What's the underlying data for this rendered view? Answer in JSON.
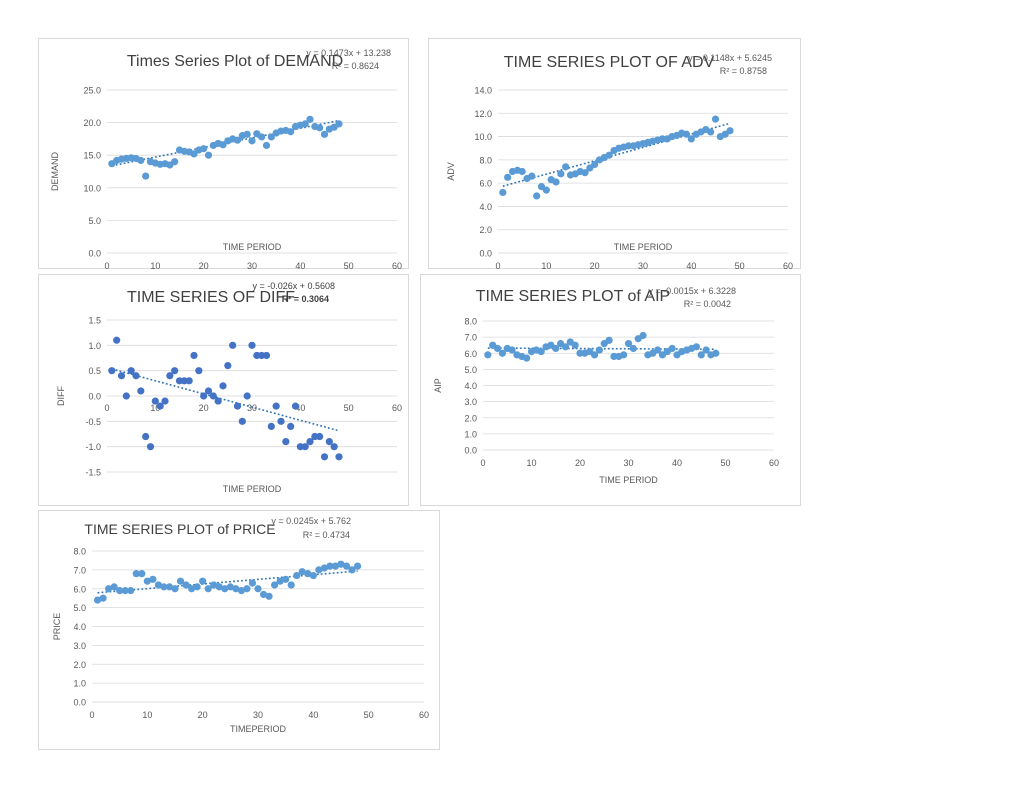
{
  "colors": {
    "marker": "#5b9bd5",
    "marker_dark": "#4472c4",
    "trend": "#2e75b6",
    "grid": "#d9d9d9",
    "text": "#595959",
    "title": "#404040"
  },
  "chart_data": [
    {
      "id": "demand",
      "type": "scatter",
      "title": "Times Series Plot of DEMAND",
      "equation": "y = 0.1473x + 13.238",
      "r2": "R² = 0.8624",
      "xlabel": "TIME PERIOD",
      "ylabel": "DEMAND",
      "xlim": [
        0,
        60
      ],
      "ylim": [
        0,
        25
      ],
      "xticks": [
        "0",
        "10",
        "20",
        "30",
        "40",
        "50",
        "60"
      ],
      "yticks": [
        "0.0",
        "5.0",
        "10.0",
        "15.0",
        "20.0",
        "25.0"
      ],
      "grid": true,
      "trend": {
        "slope": 0.1473,
        "intercept": 13.238
      },
      "x": [
        1,
        2,
        3,
        4,
        5,
        6,
        7,
        8,
        9,
        10,
        11,
        12,
        13,
        14,
        15,
        16,
        17,
        18,
        19,
        20,
        21,
        22,
        23,
        24,
        25,
        26,
        27,
        28,
        29,
        30,
        31,
        32,
        33,
        34,
        35,
        36,
        37,
        38,
        39,
        40,
        41,
        42,
        43,
        44,
        45,
        46,
        47,
        48
      ],
      "y": [
        13.7,
        14.2,
        14.4,
        14.5,
        14.6,
        14.5,
        14.2,
        11.8,
        14.0,
        13.8,
        13.6,
        13.7,
        13.5,
        14.0,
        15.8,
        15.6,
        15.5,
        15.2,
        15.8,
        16.0,
        15.0,
        16.5,
        16.8,
        16.6,
        17.2,
        17.5,
        17.3,
        18.0,
        18.2,
        17.2,
        18.3,
        17.8,
        16.5,
        17.8,
        18.4,
        18.7,
        18.8,
        18.6,
        19.4,
        19.6,
        19.8,
        20.5,
        19.4,
        19.2,
        18.2,
        19.0,
        19.3,
        19.8
      ]
    },
    {
      "id": "adv",
      "type": "scatter",
      "title": "TIME SERIES PLOT OF ADV",
      "equation": "y = 0.1148x + 5.6245",
      "r2": "R² = 0.8758",
      "xlabel": "TIME PERIOD",
      "ylabel": "ADV",
      "xlim": [
        0,
        60
      ],
      "ylim": [
        0,
        14
      ],
      "xticks": [
        "0",
        "10",
        "20",
        "30",
        "40",
        "50",
        "60"
      ],
      "yticks": [
        "0.0",
        "2.0",
        "4.0",
        "6.0",
        "8.0",
        "10.0",
        "12.0",
        "14.0"
      ],
      "grid": true,
      "trend": {
        "slope": 0.1148,
        "intercept": 5.6245
      },
      "x": [
        1,
        2,
        3,
        4,
        5,
        6,
        7,
        8,
        9,
        10,
        11,
        12,
        13,
        14,
        15,
        16,
        17,
        18,
        19,
        20,
        21,
        22,
        23,
        24,
        25,
        26,
        27,
        28,
        29,
        30,
        31,
        32,
        33,
        34,
        35,
        36,
        37,
        38,
        39,
        40,
        41,
        42,
        43,
        44,
        45,
        46,
        47,
        48
      ],
      "y": [
        5.2,
        6.5,
        7.0,
        7.1,
        7.0,
        6.4,
        6.6,
        4.9,
        5.7,
        5.4,
        6.3,
        6.1,
        6.8,
        7.4,
        6.7,
        6.8,
        7.0,
        6.9,
        7.3,
        7.6,
        8.0,
        8.2,
        8.4,
        8.8,
        9.0,
        9.1,
        9.2,
        9.2,
        9.3,
        9.4,
        9.5,
        9.6,
        9.7,
        9.8,
        9.8,
        10.0,
        10.1,
        10.3,
        10.2,
        9.8,
        10.2,
        10.4,
        10.6,
        10.4,
        11.5,
        10.0,
        10.2,
        10.5
      ]
    },
    {
      "id": "diff",
      "type": "scatter",
      "title": "TIME SERIES OF DIFF",
      "equation": "y = -0.026x + 0.5608",
      "r2": "R² = 0.3064",
      "xlabel": "TIME PERIOD",
      "ylabel": "DIFF",
      "xlim": [
        0,
        60
      ],
      "ylim": [
        -1.5,
        1.5
      ],
      "xticks": [
        "0",
        "10",
        "20",
        "30",
        "40",
        "50",
        "60"
      ],
      "yticks": [
        "-1.5",
        "-1.0",
        "-0.5",
        "0.0",
        "0.5",
        "1.0",
        "1.5"
      ],
      "grid": true,
      "trend": {
        "slope": -0.026,
        "intercept": 0.5608
      },
      "x": [
        1,
        2,
        3,
        4,
        5,
        6,
        7,
        8,
        9,
        10,
        11,
        12,
        13,
        14,
        15,
        16,
        17,
        18,
        19,
        20,
        21,
        22,
        23,
        24,
        25,
        26,
        27,
        28,
        29,
        30,
        31,
        32,
        33,
        34,
        35,
        36,
        37,
        38,
        39,
        40,
        41,
        42,
        43,
        44,
        45,
        46,
        47,
        48
      ],
      "y": [
        0.5,
        1.1,
        0.4,
        0.0,
        0.5,
        0.4,
        0.1,
        -0.8,
        -1.0,
        -0.1,
        -0.2,
        -0.1,
        0.4,
        0.5,
        0.3,
        0.3,
        0.3,
        0.8,
        0.5,
        0.0,
        0.1,
        0.0,
        -0.1,
        0.2,
        0.6,
        1.0,
        -0.2,
        -0.5,
        0.0,
        1.0,
        0.8,
        0.8,
        0.8,
        -0.6,
        -0.2,
        -0.5,
        -0.9,
        -0.6,
        -0.2,
        -1.0,
        -1.0,
        -0.9,
        -0.8,
        -0.8,
        -1.2,
        -0.9,
        -1.0,
        -1.2
      ]
    },
    {
      "id": "aip",
      "type": "scatter",
      "title": "TIME SERIES PLOT of AIP",
      "equation": "y = -0.0015x + 6.3228",
      "r2": "R² = 0.0042",
      "xlabel": "TIME PERIOD",
      "ylabel": "AIP",
      "xlim": [
        0,
        60
      ],
      "ylim": [
        0,
        8
      ],
      "xticks": [
        "0",
        "10",
        "20",
        "30",
        "40",
        "50",
        "60"
      ],
      "yticks": [
        "0.0",
        "1.0",
        "2.0",
        "3.0",
        "4.0",
        "5.0",
        "6.0",
        "7.0",
        "8.0"
      ],
      "grid": true,
      "trend": {
        "slope": -0.0015,
        "intercept": 6.3228
      },
      "x": [
        1,
        2,
        3,
        4,
        5,
        6,
        7,
        8,
        9,
        10,
        11,
        12,
        13,
        14,
        15,
        16,
        17,
        18,
        19,
        20,
        21,
        22,
        23,
        24,
        25,
        26,
        27,
        28,
        29,
        30,
        31,
        32,
        33,
        34,
        35,
        36,
        37,
        38,
        39,
        40,
        41,
        42,
        43,
        44,
        45,
        46,
        47,
        48
      ],
      "y": [
        5.9,
        6.5,
        6.3,
        6.0,
        6.3,
        6.2,
        5.9,
        5.8,
        5.7,
        6.1,
        6.2,
        6.1,
        6.4,
        6.5,
        6.3,
        6.6,
        6.4,
        6.7,
        6.5,
        6.0,
        6.0,
        6.1,
        5.9,
        6.2,
        6.6,
        6.8,
        5.8,
        5.8,
        5.9,
        6.6,
        6.3,
        6.9,
        7.1,
        5.9,
        6.0,
        6.2,
        5.9,
        6.1,
        6.3,
        5.9,
        6.1,
        6.2,
        6.3,
        6.4,
        5.9,
        6.2,
        5.9,
        6.0
      ]
    },
    {
      "id": "price",
      "type": "scatter",
      "title": "TIME SERIES PLOT of PRICE",
      "equation": "y = 0.0245x + 5.762",
      "r2": "R² = 0.4734",
      "xlabel": "TIMEPERIOD",
      "ylabel": "PRICE",
      "xlim": [
        0,
        60
      ],
      "ylim": [
        0,
        8
      ],
      "xticks": [
        "0",
        "10",
        "20",
        "30",
        "40",
        "50",
        "60"
      ],
      "yticks": [
        "0.0",
        "1.0",
        "2.0",
        "3.0",
        "4.0",
        "5.0",
        "6.0",
        "7.0",
        "8.0"
      ],
      "grid": true,
      "trend": {
        "slope": 0.0245,
        "intercept": 5.762
      },
      "x": [
        1,
        2,
        3,
        4,
        5,
        6,
        7,
        8,
        9,
        10,
        11,
        12,
        13,
        14,
        15,
        16,
        17,
        18,
        19,
        20,
        21,
        22,
        23,
        24,
        25,
        26,
        27,
        28,
        29,
        30,
        31,
        32,
        33,
        34,
        35,
        36,
        37,
        38,
        39,
        40,
        41,
        42,
        43,
        44,
        45,
        46,
        47,
        48
      ],
      "y": [
        5.4,
        5.5,
        6.0,
        6.1,
        5.9,
        5.9,
        5.9,
        6.8,
        6.8,
        6.4,
        6.5,
        6.2,
        6.1,
        6.1,
        6.0,
        6.4,
        6.2,
        6.0,
        6.1,
        6.4,
        6.0,
        6.2,
        6.1,
        6.0,
        6.1,
        6.0,
        5.9,
        6.0,
        6.3,
        6.0,
        5.7,
        5.6,
        6.2,
        6.4,
        6.5,
        6.2,
        6.7,
        6.9,
        6.8,
        6.7,
        7.0,
        7.1,
        7.2,
        7.2,
        7.3,
        7.2,
        7.0,
        7.2
      ]
    }
  ]
}
